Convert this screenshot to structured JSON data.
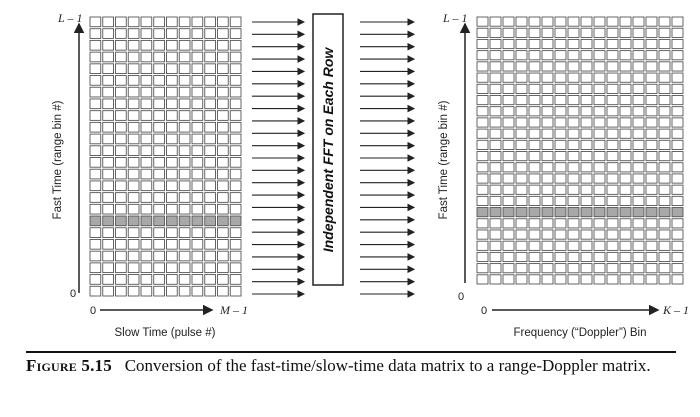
{
  "left_matrix": {
    "y_axis_label": "Fast Time (range bin #)",
    "x_axis_label": "Slow Time (pulse #)",
    "y_top_label": "L – 1",
    "y_origin_label": "0",
    "x_origin_label": "0",
    "x_end_label": "M – 1",
    "rows": 24,
    "cols": 12,
    "highlighted_row_from_bottom": 6
  },
  "center_box": {
    "label": "Independent FFT on Each Row"
  },
  "right_matrix": {
    "y_axis_label": "Fast Time (range bin #)",
    "x_axis_label": "Frequency (“Doppler”) Bin",
    "y_top_label": "L – 1",
    "y_origin_label": "0",
    "x_origin_label": "0",
    "x_end_label": "K – 1",
    "rows": 24,
    "cols": 16,
    "highlighted_row_from_bottom": 6
  },
  "arrows_per_side": 23,
  "caption": {
    "label": "Figure 5.15",
    "text": "Conversion of the fast-time/slow-time data matrix to a range-Doppler matrix."
  },
  "colors": {
    "cell_stroke": "#555555",
    "cell_fill": "#ffffff",
    "highlight_fill": "#a8a8a8",
    "ink": "#222222"
  }
}
